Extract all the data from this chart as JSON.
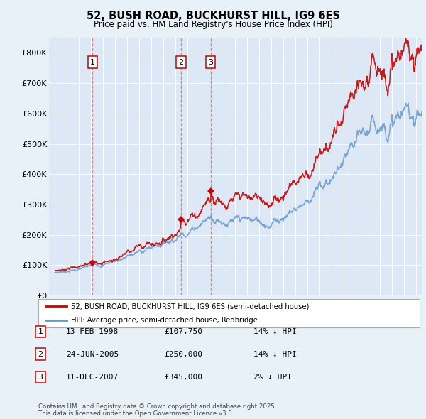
{
  "title": "52, BUSH ROAD, BUCKHURST HILL, IG9 6ES",
  "subtitle": "Price paid vs. HM Land Registry's House Price Index (HPI)",
  "background_color": "#e8f0f8",
  "plot_bg_color": "#dce8f5",
  "transactions": [
    {
      "date": 1998.12,
      "price": 107750,
      "label": "1"
    },
    {
      "date": 2005.48,
      "price": 250000,
      "label": "2"
    },
    {
      "date": 2007.95,
      "price": 345000,
      "label": "3"
    }
  ],
  "transaction_dates_str": [
    "13-FEB-1998",
    "24-JUN-2005",
    "11-DEC-2007"
  ],
  "transaction_prices_str": [
    "£107,750",
    "£250,000",
    "£345,000"
  ],
  "transaction_hpi_str": [
    "14% ↓ HPI",
    "14% ↓ HPI",
    "2% ↓ HPI"
  ],
  "legend_line1": "52, BUSH ROAD, BUCKHURST HILL, IG9 6ES (semi-detached house)",
  "legend_line2": "HPI: Average price, semi-detached house, Redbridge",
  "footer": "Contains HM Land Registry data © Crown copyright and database right 2025.\nThis data is licensed under the Open Government Licence v3.0.",
  "line_color_red": "#cc0000",
  "line_color_blue": "#6699cc",
  "ylim": [
    0,
    850000
  ],
  "yticks": [
    0,
    100000,
    200000,
    300000,
    400000,
    500000,
    600000,
    700000,
    800000
  ],
  "ytick_labels": [
    "£0",
    "£100K",
    "£200K",
    "£300K",
    "£400K",
    "£500K",
    "£600K",
    "£700K",
    "£800K"
  ],
  "xlim": [
    1994.5,
    2025.5
  ],
  "xticks": [
    1995,
    1996,
    1997,
    1998,
    1999,
    2000,
    2001,
    2002,
    2003,
    2004,
    2005,
    2006,
    2007,
    2008,
    2009,
    2010,
    2011,
    2012,
    2013,
    2014,
    2015,
    2016,
    2017,
    2018,
    2019,
    2020,
    2021,
    2022,
    2023,
    2024,
    2025
  ]
}
